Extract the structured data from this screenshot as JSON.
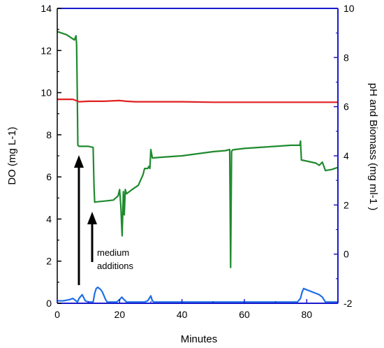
{
  "chart_data": {
    "type": "line",
    "x_label": "Minutes",
    "y_left_label": "DO (mg L-1)",
    "y_right_label": "pH and Biomass (mg ml-1 )",
    "xlim": [
      0,
      90
    ],
    "y_left_lim": [
      0,
      14
    ],
    "y_right_lim": [
      -2,
      10
    ],
    "x_ticks": [
      "0",
      "20",
      "40",
      "60",
      "80"
    ],
    "y_left_ticks": [
      "0",
      "2",
      "4",
      "6",
      "8",
      "10",
      "12",
      "14"
    ],
    "y_right_ticks": [
      "-2",
      "0",
      "2",
      "4",
      "6",
      "8",
      "10"
    ],
    "grid": false,
    "legend": "none",
    "colors": {
      "left_axis": "#000000",
      "right_axis": "#1a1acc",
      "do": "#1f8a2e",
      "ph": "#e02020",
      "biomass": "#1e6fe6"
    },
    "series": [
      {
        "key": "do",
        "axis": "left",
        "x": [
          0,
          1,
          3,
          4.5,
          5.5,
          6,
          6.2,
          6.4,
          6.6,
          7,
          8,
          9,
          10,
          11.5,
          11.8,
          12,
          13,
          15,
          18,
          19.5,
          20,
          20.4,
          20.8,
          21.2,
          21.5,
          21.8,
          22.2,
          24,
          26,
          27.5,
          28,
          29,
          29.4,
          29.7,
          30,
          30.5,
          35,
          40,
          45,
          50,
          54,
          55.3,
          55.6,
          55.9,
          56.2,
          57,
          60,
          65,
          70,
          75,
          77.8,
          78,
          78.3,
          80,
          83,
          84,
          85,
          86,
          88,
          89,
          90
        ],
        "y": [
          12.9,
          12.85,
          12.75,
          12.6,
          12.5,
          12.7,
          12.3,
          10.2,
          7.5,
          7.45,
          7.45,
          7.45,
          7.45,
          7.4,
          5.5,
          4.8,
          4.82,
          4.85,
          4.9,
          5.1,
          5.4,
          4.6,
          3.2,
          5.3,
          4.2,
          5.4,
          5.2,
          5.4,
          5.6,
          6.1,
          6.4,
          6.4,
          6.5,
          6.4,
          7.3,
          6.9,
          6.95,
          7.0,
          7.1,
          7.2,
          7.25,
          7.3,
          1.7,
          7.2,
          7.28,
          7.3,
          7.35,
          7.4,
          7.45,
          7.5,
          7.5,
          7.7,
          6.8,
          6.75,
          6.65,
          6.55,
          6.7,
          6.3,
          6.35,
          6.4,
          6.45
        ]
      },
      {
        "key": "ph",
        "axis": "right",
        "x": [
          0,
          3,
          5,
          6,
          7,
          10,
          15,
          20,
          22,
          25,
          30,
          40,
          50,
          60,
          70,
          80,
          85,
          90
        ],
        "y": [
          6.3,
          6.3,
          6.3,
          6.25,
          6.2,
          6.22,
          6.22,
          6.25,
          6.22,
          6.2,
          6.2,
          6.2,
          6.18,
          6.18,
          6.18,
          6.18,
          6.18,
          6.18
        ]
      },
      {
        "key": "biomass",
        "axis": "right",
        "x": [
          0,
          2,
          4,
          5,
          6,
          6.5,
          7,
          8,
          9,
          10,
          11,
          11.5,
          12,
          12.5,
          13,
          13.5,
          14,
          14.5,
          15,
          15.5,
          16,
          16.5,
          17,
          18,
          19,
          20,
          20.7,
          21.4,
          22.2,
          23,
          25,
          28,
          29,
          29.5,
          30,
          30.5,
          31,
          35,
          45,
          55,
          65,
          75,
          77,
          78,
          78.5,
          79,
          80,
          81,
          82,
          83,
          84,
          85,
          86,
          87,
          88,
          90
        ],
        "y": [
          -1.9,
          -1.9,
          -1.85,
          -1.8,
          -1.9,
          -1.95,
          -1.8,
          -1.65,
          -1.9,
          -1.95,
          -1.95,
          -1.95,
          -1.6,
          -1.4,
          -1.35,
          -1.4,
          -1.45,
          -1.55,
          -1.7,
          -1.85,
          -1.95,
          -1.95,
          -1.95,
          -1.95,
          -1.95,
          -1.85,
          -1.75,
          -1.85,
          -1.95,
          -1.95,
          -1.95,
          -1.95,
          -1.9,
          -1.8,
          -1.7,
          -1.9,
          -1.95,
          -1.95,
          -1.95,
          -1.95,
          -1.95,
          -1.95,
          -1.95,
          -1.8,
          -1.55,
          -1.4,
          -1.45,
          -1.5,
          -1.55,
          -1.6,
          -1.65,
          -1.75,
          -1.95,
          -1.95,
          -1.95,
          -1.95
        ]
      }
    ],
    "annotations": [
      {
        "text_lines": [
          "medium",
          "additions"
        ]
      }
    ]
  }
}
